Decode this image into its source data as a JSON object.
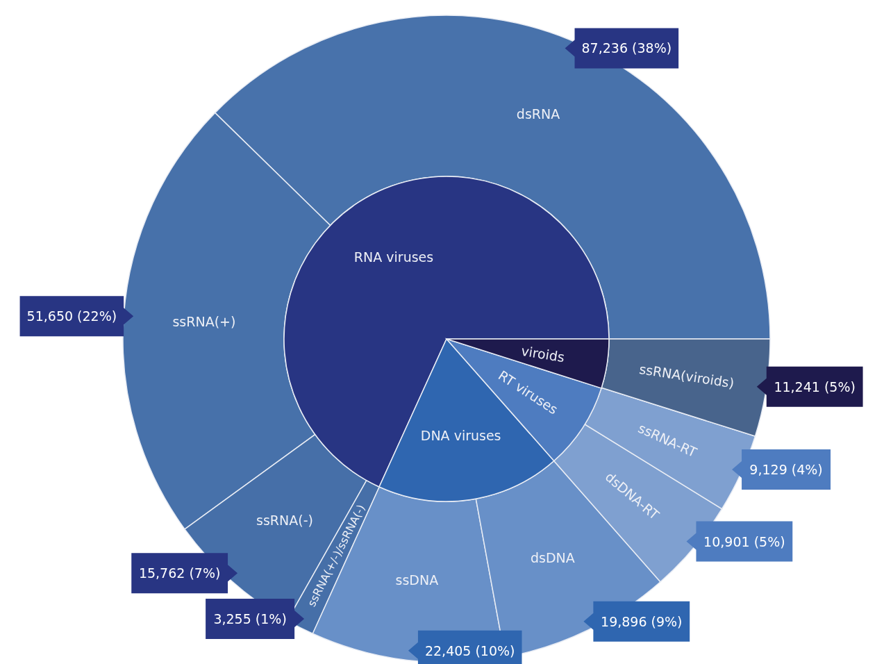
{
  "chart_data": [
    {
      "type": "donut",
      "categories": [
        "dsRNA",
        "ssRNA(+)",
        "ssRNA(-)",
        "ssRNA(+/-)/ssRNA(-)",
        "ssDNA",
        "dsDNA",
        "dsDNA-RT",
        "ssRNA-RT",
        "ssRNA(viroids)"
      ],
      "values": [
        87236,
        51650,
        15762,
        3255,
        22405,
        19896,
        10901,
        9129,
        11241
      ],
      "colors": [
        "#4872ab",
        "#4771aa",
        "#466fa8",
        "#466fa8",
        "#6890c8",
        "#6890c8",
        "#7fa0d0",
        "#7fa0d0",
        "#48648c"
      ],
      "value_labels": [
        "87,236 (38%)",
        "51,650 (22%)",
        "15,762 (7%)",
        "3,255 (1%)",
        "22,405 (10%)",
        "19,896 (9%)",
        "10,901 (5%)",
        "9,129 (4%)",
        "11,241 (5%)"
      ]
    },
    {
      "type": "pie",
      "categories": [
        "RNA viruses",
        "DNA viruses",
        "RT viruses",
        "viroids"
      ],
      "values": [
        68.2,
        18.3,
        8.6,
        4.9
      ],
      "colors": [
        "#283583",
        "#2f66b0",
        "#4e7cc0",
        "#1e1a4d"
      ]
    }
  ]
}
